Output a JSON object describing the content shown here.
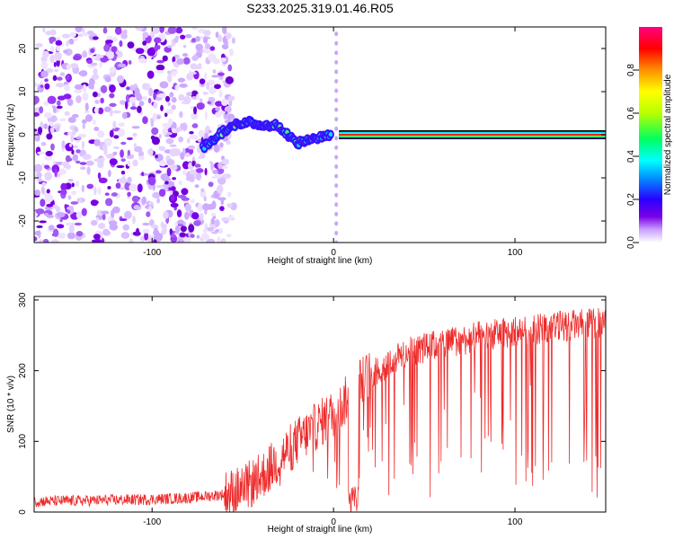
{
  "figure_title": "S233.2025.319.01.46.R05",
  "chart_data": [
    {
      "type": "heatmap",
      "title": "S233.2025.319.01.46.R05",
      "xlabel": "Height of straight line (km)",
      "ylabel": "Frequency (Hz)",
      "xlim": [
        -165,
        150
      ],
      "ylim": [
        -25,
        25
      ],
      "xticks": [
        -100,
        0,
        100
      ],
      "yticks": [
        -20,
        -10,
        0,
        10,
        20
      ],
      "colorbar": {
        "label": "Normalized spectral amplitude",
        "range": [
          0,
          1
        ],
        "ticks": [
          0.0,
          0.2,
          0.4,
          0.6,
          0.8
        ],
        "tick_labels": [
          "0.0",
          "0.2",
          "0.4",
          "0.6",
          "0.8"
        ],
        "colors": [
          "#ffffff",
          "#c9a0ff",
          "#7a00e6",
          "#2a00ff",
          "#0090ff",
          "#00ffff",
          "#00ff60",
          "#b8ff00",
          "#ffff00",
          "#ff9000",
          "#ff0000",
          "#ff0080"
        ]
      },
      "regions": [
        {
          "name": "noise",
          "x_range": [
            -165,
            -75
          ],
          "description_value": "scattered low amplitude"
        },
        {
          "name": "transition",
          "x_range": [
            -75,
            0
          ],
          "y_track": [
            [
              -72,
              -3
            ],
            [
              -60,
              1
            ],
            [
              -50,
              3
            ],
            [
              -30,
              2
            ],
            [
              -20,
              -2
            ],
            [
              -10,
              -1
            ],
            [
              0,
              0
            ]
          ]
        },
        {
          "name": "carrier",
          "x_range": [
            3,
            150
          ],
          "frequency": 0.0,
          "amplitude": 0.9
        }
      ]
    },
    {
      "type": "line",
      "title": "",
      "xlabel": "Height of straight line (km)",
      "ylabel": "SNR (10 * v/v)",
      "xlim": [
        -165,
        150
      ],
      "ylim": [
        0,
        305
      ],
      "xticks": [
        -100,
        0,
        100
      ],
      "yticks": [
        0,
        100,
        200,
        300
      ],
      "series": [
        {
          "name": "SNR",
          "color": "#ee2a2a",
          "x": [
            -165,
            -140,
            -120,
            -100,
            -80,
            -60,
            -50,
            -40,
            -30,
            -20,
            -10,
            0,
            5,
            10,
            15,
            20,
            30,
            40,
            50,
            60,
            70,
            80,
            90,
            100,
            110,
            120,
            130,
            140,
            150
          ],
          "y": [
            15,
            16,
            17,
            18,
            20,
            25,
            32,
            50,
            75,
            100,
            120,
            140,
            150,
            175,
            185,
            195,
            210,
            225,
            232,
            238,
            243,
            248,
            252,
            255,
            258,
            262,
            264,
            266,
            268
          ]
        }
      ]
    }
  ]
}
